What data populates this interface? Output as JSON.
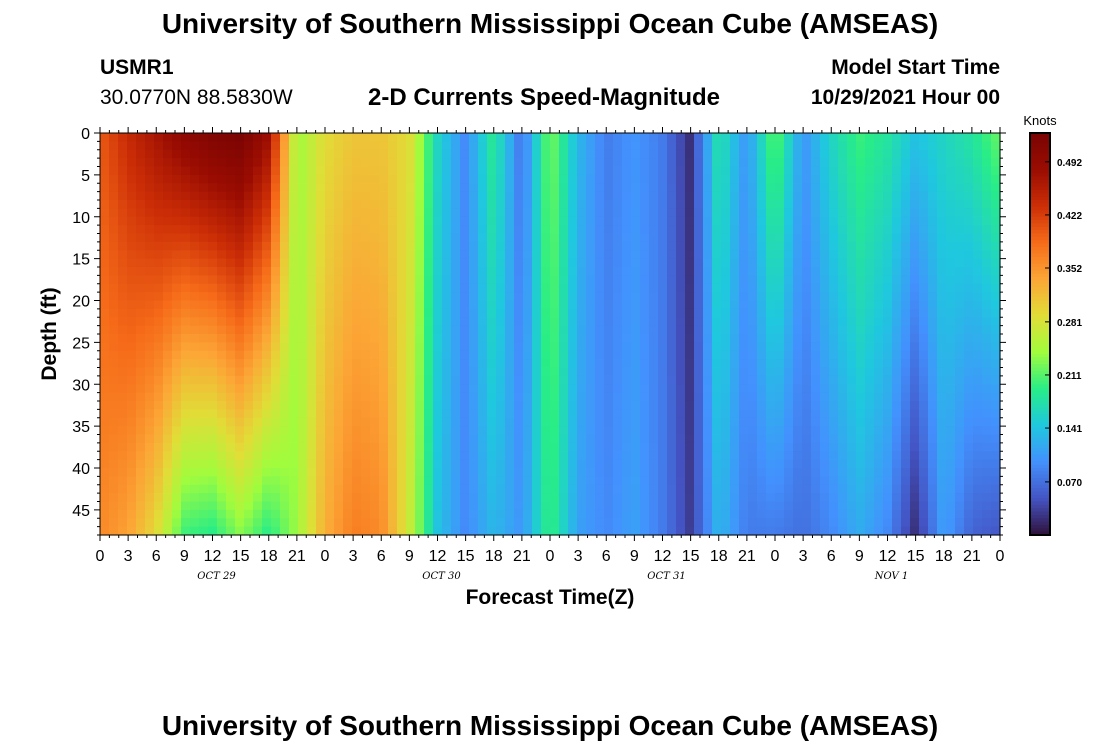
{
  "title": "University of Southern Mississippi Ocean Cube (AMSEAS)",
  "footer_title": "University of Southern Mississippi Ocean Cube (AMSEAS)",
  "station": {
    "id": "USMR1",
    "coords": "30.0770N  88.5830W"
  },
  "subtitle": "2-D Currents Speed-Magnitude",
  "model_start": {
    "label": "Model Start Time",
    "value": "10/29/2021 Hour 00"
  },
  "chart_data": {
    "type": "heatmap",
    "title": "2-D Currents Speed-Magnitude",
    "xlabel": "Forecast Time(Z)",
    "ylabel": "Depth (ft)",
    "x_ticks": [
      "0",
      "3",
      "6",
      "9",
      "12",
      "15",
      "18",
      "21",
      "0",
      "3",
      "6",
      "9",
      "12",
      "15",
      "18",
      "21",
      "0",
      "3",
      "6",
      "9",
      "12",
      "15",
      "18",
      "21",
      "0",
      "3",
      "6",
      "9",
      "12",
      "15",
      "18",
      "21",
      "0"
    ],
    "x_range_hours": [
      0,
      96
    ],
    "day_labels": [
      {
        "label": "OCT 29",
        "hour": 12
      },
      {
        "label": "OCT 30",
        "hour": 36
      },
      {
        "label": "OCT 31",
        "hour": 60
      },
      {
        "label": "NOV 1",
        "hour": 84
      }
    ],
    "y_ticks": [
      0,
      5,
      10,
      15,
      20,
      25,
      30,
      35,
      40,
      45
    ],
    "y_range": [
      0,
      48
    ],
    "colorbar": {
      "unit": "Knots",
      "min": 0.0,
      "max": 0.53,
      "ticks": [
        "0.492",
        "0.422",
        "0.352",
        "0.281",
        "0.211",
        "0.141",
        "0.070"
      ],
      "tick_values": [
        0.492,
        0.422,
        0.352,
        0.281,
        0.211,
        0.141,
        0.07
      ],
      "palette": [
        "#30123b",
        "#4454c4",
        "#4391fe",
        "#1fc8de",
        "#28ed87",
        "#a1fc3d",
        "#e1dd37",
        "#fca636",
        "#f66b19",
        "#cc2e06",
        "#9a0c02",
        "#7a0403"
      ]
    },
    "speed_by_hour": [
      {
        "hour": 0,
        "surface": 0.4,
        "bottom": 0.36
      },
      {
        "hour": 3,
        "surface": 0.44,
        "bottom": 0.34
      },
      {
        "hour": 6,
        "surface": 0.47,
        "bottom": 0.29
      },
      {
        "hour": 9,
        "surface": 0.5,
        "bottom": 0.2
      },
      {
        "hour": 12,
        "surface": 0.52,
        "bottom": 0.19
      },
      {
        "hour": 15,
        "surface": 0.53,
        "bottom": 0.23
      },
      {
        "hour": 18,
        "surface": 0.48,
        "bottom": 0.19
      },
      {
        "hour": 21,
        "surface": 0.24,
        "bottom": 0.24
      },
      {
        "hour": 24,
        "surface": 0.29,
        "bottom": 0.33
      },
      {
        "hour": 27,
        "surface": 0.31,
        "bottom": 0.37
      },
      {
        "hour": 30,
        "surface": 0.31,
        "bottom": 0.36
      },
      {
        "hour": 33,
        "surface": 0.29,
        "bottom": 0.27
      },
      {
        "hour": 36,
        "surface": 0.16,
        "bottom": 0.14
      },
      {
        "hour": 39,
        "surface": 0.09,
        "bottom": 0.09
      },
      {
        "hour": 42,
        "surface": 0.19,
        "bottom": 0.13
      },
      {
        "hour": 45,
        "surface": 0.07,
        "bottom": 0.1
      },
      {
        "hour": 48,
        "surface": 0.23,
        "bottom": 0.2
      },
      {
        "hour": 51,
        "surface": 0.13,
        "bottom": 0.11
      },
      {
        "hour": 54,
        "surface": 0.08,
        "bottom": 0.09
      },
      {
        "hour": 57,
        "surface": 0.1,
        "bottom": 0.11
      },
      {
        "hour": 60,
        "surface": 0.08,
        "bottom": 0.08
      },
      {
        "hour": 63,
        "surface": 0.02,
        "bottom": 0.03
      },
      {
        "hour": 66,
        "surface": 0.18,
        "bottom": 0.13
      },
      {
        "hour": 69,
        "surface": 0.1,
        "bottom": 0.08
      },
      {
        "hour": 72,
        "surface": 0.22,
        "bottom": 0.08
      },
      {
        "hour": 75,
        "surface": 0.1,
        "bottom": 0.07
      },
      {
        "hour": 78,
        "surface": 0.16,
        "bottom": 0.09
      },
      {
        "hour": 81,
        "surface": 0.2,
        "bottom": 0.12
      },
      {
        "hour": 84,
        "surface": 0.18,
        "bottom": 0.09
      },
      {
        "hour": 87,
        "surface": 0.14,
        "bottom": 0.02
      },
      {
        "hour": 90,
        "surface": 0.16,
        "bottom": 0.11
      },
      {
        "hour": 93,
        "surface": 0.18,
        "bottom": 0.06
      },
      {
        "hour": 96,
        "surface": 0.22,
        "bottom": 0.05
      }
    ]
  }
}
